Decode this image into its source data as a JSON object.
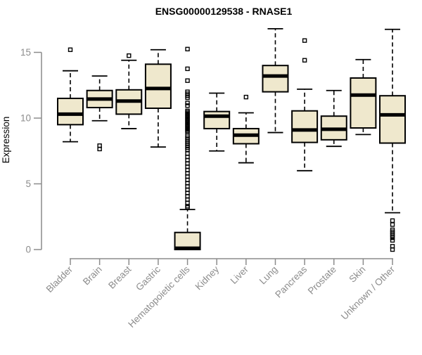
{
  "chart_data": {
    "type": "box",
    "title": "ENSG00000129538 - RNASE1",
    "xlabel": "",
    "ylabel": "Expression",
    "yticks": [
      0,
      5,
      10,
      15
    ],
    "ylim": [
      -0.5,
      17
    ],
    "grid": false,
    "categories": [
      "Bladder",
      "Brain",
      "Breast",
      "Gastric",
      "Hematopoietic cells",
      "Kidney",
      "Liver",
      "Lung",
      "Pancreas",
      "Prostate",
      "Skin",
      "Unknown / Other"
    ],
    "series": [
      {
        "name": "Bladder",
        "whisker_low": 8.2,
        "q1": 9.5,
        "median": 10.3,
        "q3": 11.5,
        "whisker_high": 13.6,
        "outliers": [
          15.2
        ]
      },
      {
        "name": "Brain",
        "whisker_low": 9.8,
        "q1": 10.8,
        "median": 11.45,
        "q3": 12.1,
        "whisker_high": 13.2,
        "outliers": [
          7.9,
          7.65
        ]
      },
      {
        "name": "Breast",
        "whisker_low": 9.2,
        "q1": 10.3,
        "median": 11.3,
        "q3": 12.15,
        "whisker_high": 14.4,
        "outliers": [
          14.75
        ]
      },
      {
        "name": "Gastric",
        "whisker_low": 7.8,
        "q1": 10.75,
        "median": 12.25,
        "q3": 14.1,
        "whisker_high": 15.2,
        "outliers": []
      },
      {
        "name": "Hematopoietic cells",
        "whisker_low": 0.0,
        "q1": 0.0,
        "median": 0.1,
        "q3": 1.3,
        "whisker_high": 3.05,
        "outliers": [
          15.25,
          13.75,
          12.85,
          12.0,
          11.85,
          11.7,
          11.55,
          11.15,
          10.95,
          10.55,
          10.45,
          10.35,
          10.25,
          10.15,
          10.05,
          9.95,
          9.85,
          9.75,
          9.65,
          9.55,
          9.45,
          9.35,
          9.25,
          9.15,
          9.05,
          8.95,
          8.65,
          8.5,
          8.35,
          8.2,
          8.05,
          7.9,
          7.75,
          7.6,
          7.3,
          7.05,
          6.8,
          6.55,
          6.3,
          6.05,
          5.8,
          5.55,
          5.3,
          5.05,
          4.8,
          4.55,
          4.3,
          4.05,
          3.8,
          3.55,
          3.3,
          3.2
        ]
      },
      {
        "name": "Kidney",
        "whisker_low": 7.5,
        "q1": 9.2,
        "median": 10.15,
        "q3": 10.5,
        "whisker_high": 11.9,
        "outliers": []
      },
      {
        "name": "Liver",
        "whisker_low": 6.6,
        "q1": 8.05,
        "median": 8.7,
        "q3": 9.2,
        "whisker_high": 10.4,
        "outliers": [
          11.6
        ]
      },
      {
        "name": "Lung",
        "whisker_low": 8.9,
        "q1": 12.0,
        "median": 13.2,
        "q3": 14.0,
        "whisker_high": 16.8,
        "outliers": []
      },
      {
        "name": "Pancreas",
        "whisker_low": 6.0,
        "q1": 8.15,
        "median": 9.1,
        "q3": 10.55,
        "whisker_high": 12.2,
        "outliers": [
          15.9,
          14.4
        ]
      },
      {
        "name": "Prostate",
        "whisker_low": 7.85,
        "q1": 8.35,
        "median": 9.15,
        "q3": 10.15,
        "whisker_high": 12.1,
        "outliers": []
      },
      {
        "name": "Skin",
        "whisker_low": 8.75,
        "q1": 9.25,
        "median": 11.75,
        "q3": 13.05,
        "whisker_high": 14.45,
        "outliers": []
      },
      {
        "name": "Unknown / Other",
        "whisker_low": 2.8,
        "q1": 8.1,
        "median": 10.25,
        "q3": 11.7,
        "whisker_high": 16.75,
        "outliers": [
          2.2,
          1.9,
          1.5,
          1.35,
          1.2,
          1.05,
          0.9,
          0.7,
          0.25,
          0.0
        ]
      }
    ],
    "style": {
      "box_fill": "#EFE8CD",
      "box_stroke": "#000000",
      "median_color": "#000000",
      "whisker_style": "dashed",
      "outlier_shape": "open-square",
      "axis_color": "#8C8C8C",
      "label_color": "#8C8C8C",
      "title_color": "#000000",
      "legend": "none"
    }
  }
}
